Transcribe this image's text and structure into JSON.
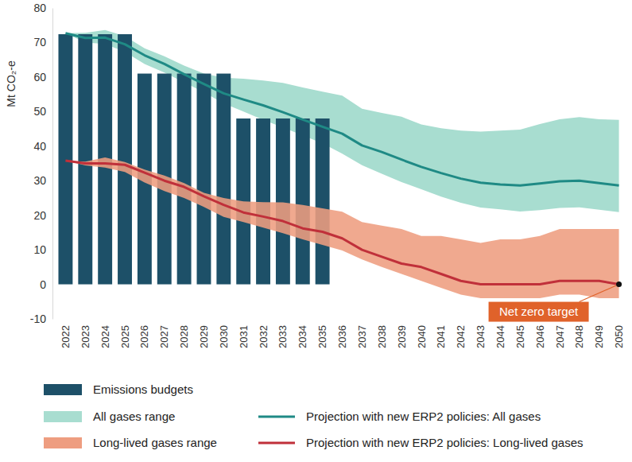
{
  "chart_data": {
    "type": "bar",
    "y_label": "Mt CO₂-e",
    "categories": [
      "2022",
      "2023",
      "2024",
      "2025",
      "2026",
      "2027",
      "2028",
      "2029",
      "2030",
      "2031",
      "2032",
      "2033",
      "2034",
      "2035",
      "2036",
      "2037",
      "2038",
      "2039",
      "2040",
      "2041",
      "2042",
      "2043",
      "2044",
      "2045",
      "2046",
      "2047",
      "2048",
      "2049",
      "2050"
    ],
    "ylim": [
      -10,
      80
    ],
    "yticks": [
      -10,
      0,
      10,
      20,
      30,
      40,
      50,
      60,
      70,
      80
    ],
    "grid": false,
    "legend": "bottom",
    "series": [
      {
        "name": "Emissions budgets",
        "type": "bar",
        "color": "#1d5068",
        "values": [
          72.4,
          72.4,
          72.4,
          72.4,
          61,
          61,
          61,
          61,
          61,
          48,
          48,
          48,
          48,
          48,
          null,
          null,
          null,
          null,
          null,
          null,
          null,
          null,
          null,
          null,
          null,
          null,
          null,
          null,
          null
        ]
      },
      {
        "name": "All gases range",
        "type": "area",
        "color": "#a8ddd0",
        "values": [
          72.7,
          72.8,
          73.6,
          71.8,
          68.3,
          66.0,
          63.3,
          61.0,
          59.8,
          59.5,
          59.0,
          58.3,
          57.0,
          55.8,
          54.6,
          50.8,
          49.6,
          48.5,
          46.3,
          45.2,
          44.5,
          44.2,
          44.5,
          44.8,
          46.4,
          47.8,
          48.4,
          47.8,
          47.6
        ],
        "lower": [
          72.7,
          70.0,
          69.6,
          67.3,
          63.8,
          61.3,
          58.5,
          55.6,
          52.4,
          50.0,
          47.6,
          45.4,
          43.1,
          40.8,
          37.8,
          34.5,
          32.0,
          29.6,
          27.5,
          25.4,
          23.6,
          22.2,
          21.7,
          21.1,
          21.5,
          22.1,
          22.3,
          21.6,
          20.9
        ]
      },
      {
        "name": "Long-lived gases range",
        "type": "area",
        "color": "#ee9d80",
        "values": [
          35.8,
          35.5,
          36.7,
          35.4,
          33.2,
          31.5,
          29.3,
          26.5,
          25.0,
          24.0,
          23.8,
          23.7,
          23.0,
          22.0,
          21.0,
          18.0,
          17.0,
          16.0,
          14.0,
          14.0,
          13.0,
          12.0,
          13.0,
          13.0,
          14.0,
          16.0,
          16.0,
          16.0,
          16.0
        ],
        "lower": [
          35.8,
          34.4,
          33.8,
          32.5,
          29.5,
          27.0,
          25.0,
          22.4,
          19.5,
          18.0,
          16.4,
          14.8,
          13.0,
          11.4,
          9.8,
          7.2,
          5.0,
          3.0,
          1.0,
          -1.0,
          -3.0,
          -4.0,
          -4.0,
          -4.0,
          -4.0,
          -3.0,
          -3.0,
          -4.0,
          -4.0
        ]
      },
      {
        "name": "Projection with new ERP2 policies: All gases",
        "type": "line",
        "color": "#1f8a85",
        "values": [
          72.7,
          71.3,
          71.4,
          69.5,
          66.3,
          63.8,
          60.8,
          58.0,
          55.3,
          53.5,
          51.8,
          49.8,
          47.7,
          45.6,
          43.6,
          40.2,
          38.3,
          36.1,
          34.0,
          32.2,
          30.6,
          29.4,
          28.9,
          28.6,
          29.2,
          29.8,
          30.0,
          29.3,
          28.6
        ]
      },
      {
        "name": "Projection with new ERP2 policies: Long-lived gases",
        "type": "line",
        "color": "#c0303a",
        "values": [
          35.8,
          35.0,
          35.0,
          34.6,
          32.3,
          30.0,
          28.2,
          25.5,
          23.0,
          20.8,
          19.6,
          18.3,
          16.2,
          15.2,
          13.3,
          10.0,
          8.0,
          6.0,
          5.0,
          3.0,
          1.0,
          0,
          0,
          0,
          0,
          1.0,
          1.0,
          1.0,
          0
        ]
      }
    ],
    "annotations": [
      {
        "text": "Net zero target",
        "x": "2050",
        "y": 0,
        "color": "#e0622a"
      }
    ]
  }
}
